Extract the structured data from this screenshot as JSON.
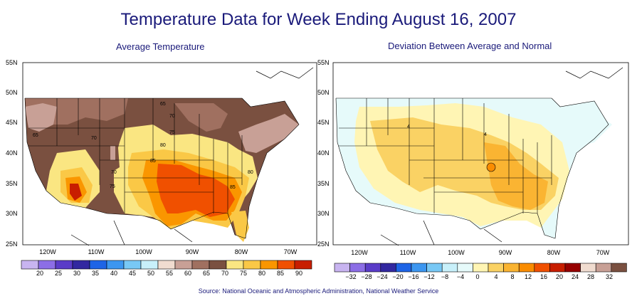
{
  "title": "Temperature Data for Week Ending August 16, 2007",
  "source": "Source:  National Oceanic and Atmospheric Administration, National Weather Service",
  "left_map": {
    "subtitle": "Average Temperature",
    "lat_labels": [
      "55N",
      "50N",
      "45N",
      "40N",
      "35N",
      "30N",
      "25N"
    ],
    "lon_labels": [
      "120W",
      "110W",
      "100W",
      "90W",
      "80W",
      "70W"
    ],
    "contour_labels": [
      "65",
      "70",
      "65",
      "70",
      "75",
      "80",
      "85",
      "70",
      "75",
      "80",
      "85"
    ],
    "legend_labels": [
      "20",
      "25",
      "30",
      "35",
      "40",
      "45",
      "50",
      "55",
      "60",
      "65",
      "70",
      "75",
      "80",
      "85",
      "90"
    ],
    "legend_colors": [
      "#c8b4f0",
      "#8c6ee6",
      "#5a3cc8",
      "#3228a0",
      "#1e64e6",
      "#3c96f0",
      "#78c8f5",
      "#c8f0fa",
      "#f0dcd0",
      "#c8a096",
      "#a07060",
      "#7a5040",
      "#fae682",
      "#fac846",
      "#fa9600",
      "#f05000",
      "#c81e00"
    ]
  },
  "right_map": {
    "subtitle": "Deviation Between Average and Normal",
    "lat_labels": [
      "55N",
      "50N",
      "45N",
      "40N",
      "35N",
      "30N",
      "25N"
    ],
    "lon_labels": [
      "120W",
      "110W",
      "100W",
      "90W",
      "80W",
      "70W"
    ],
    "contour_labels": [
      "4",
      "4"
    ],
    "legend_labels": [
      "−32",
      "−28",
      "−24",
      "−20",
      "−16",
      "−12",
      "−8",
      "−4",
      "0",
      "4",
      "8",
      "12",
      "16",
      "20",
      "24",
      "28",
      "32"
    ],
    "legend_colors": [
      "#c8b4f0",
      "#8c6ee6",
      "#5a3cc8",
      "#3228a0",
      "#1e64e6",
      "#3c96f0",
      "#78c8f5",
      "#c8f0fa",
      "#e6fafa",
      "#fff5b4",
      "#fad264",
      "#fab432",
      "#fa8c00",
      "#f05000",
      "#c81e00",
      "#960000",
      "#f0dcd0",
      "#c8a096",
      "#7a5040"
    ]
  }
}
